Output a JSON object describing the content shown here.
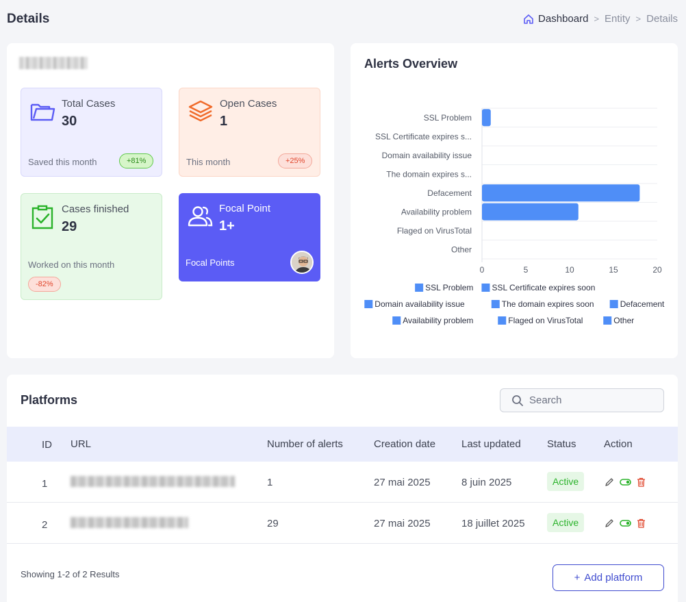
{
  "page": {
    "title": "Details"
  },
  "breadcrumb": {
    "items": [
      "Dashboard",
      "Entity",
      "Details"
    ],
    "separator": ">"
  },
  "entity": {
    "name_blurred": true
  },
  "stats": {
    "total": {
      "label": "Total Cases",
      "value": "30",
      "note": "Saved this month",
      "badge": "+81%"
    },
    "open": {
      "label": "Open Cases",
      "value": "1",
      "note": "This month",
      "badge": "+25%"
    },
    "finished": {
      "label": "Cases finished",
      "value": "29",
      "note": "Worked on this month",
      "badge": "-82%"
    },
    "focal": {
      "label": "Focal Point",
      "value": "1+",
      "note": "Focal Points"
    }
  },
  "chart": {
    "title": "Alerts Overview"
  },
  "chart_data": {
    "type": "bar",
    "orientation": "horizontal",
    "categories": [
      "SSL Problem",
      "SSL Certificate expires s...",
      "Domain availability issue",
      "The domain expires s...",
      "Defacement",
      "Availability problem",
      "Flaged on VirusTotal",
      "Other"
    ],
    "values": [
      1,
      0,
      0,
      0,
      18,
      11,
      0,
      0
    ],
    "xlim": [
      0,
      20
    ],
    "xticks": [
      "0",
      "5",
      "10",
      "15",
      "20"
    ],
    "color": "#4f8ef7",
    "legend": [
      "SSL Problem",
      "SSL Certificate expires soon",
      "Domain availability issue",
      "The domain expires soon",
      "Defacement",
      "Availability problem",
      "Flaged on VirusTotal",
      "Other"
    ],
    "legend_position": "bottom",
    "grid": true
  },
  "platforms": {
    "title": "Platforms",
    "search_placeholder": "Search",
    "columns": [
      "ID",
      "URL",
      "Number of alerts",
      "Creation date",
      "Last updated",
      "Status",
      "Action"
    ],
    "rows": [
      {
        "id": "1",
        "alerts": "1",
        "created": "27 mai 2025",
        "updated": "8 juin 2025",
        "status": "Active"
      },
      {
        "id": "2",
        "alerts": "29",
        "created": "27 mai 2025",
        "updated": "18 juillet 2025",
        "status": "Active"
      }
    ],
    "showing": "Showing 1-2 of 2 Results",
    "add_label": "Add platform"
  },
  "colors": {
    "accent": "#5b5cf5",
    "active_green": "#2bb32b",
    "danger": "#e0452b"
  }
}
